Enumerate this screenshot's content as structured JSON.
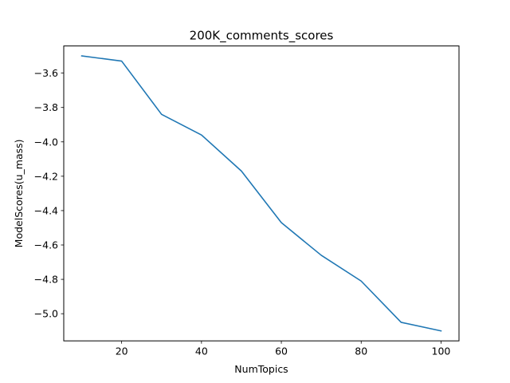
{
  "chart_data": {
    "type": "line",
    "title": "200K_comments_scores",
    "xlabel": "NumTopics",
    "ylabel": "ModelScores(u_mass)",
    "xlim": [
      5.5,
      104.5
    ],
    "ylim": [
      -5.158,
      -3.442
    ],
    "xticks": [
      20,
      40,
      60,
      80,
      100
    ],
    "xtick_labels": [
      "20",
      "40",
      "60",
      "80",
      "100"
    ],
    "yticks": [
      -5.0,
      -4.8,
      -4.6,
      -4.4,
      -4.2,
      -4.0,
      -3.8,
      -3.6
    ],
    "ytick_labels": [
      "−5.0",
      "−4.8",
      "−4.6",
      "−4.4",
      "−4.2",
      "−4.0",
      "−3.8",
      "−3.6"
    ],
    "grid": false,
    "series": [
      {
        "color": "#1f77b4",
        "x": [
          10,
          20,
          30,
          40,
          50,
          60,
          70,
          80,
          90,
          100
        ],
        "y": [
          -3.5,
          -3.53,
          -3.84,
          -3.96,
          -4.17,
          -4.47,
          -4.66,
          -4.81,
          -5.05,
          -5.1
        ]
      }
    ]
  }
}
